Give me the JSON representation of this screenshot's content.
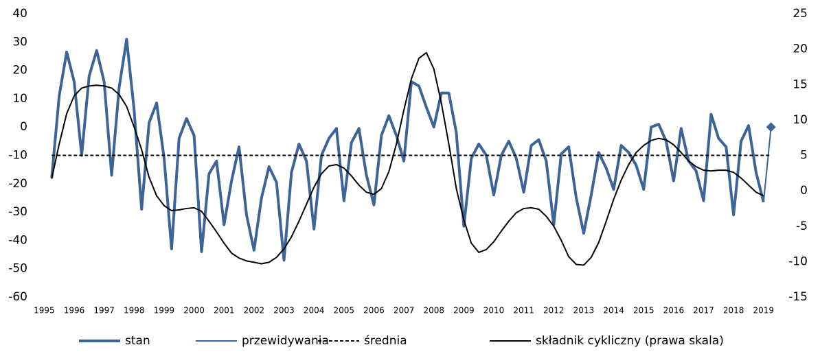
{
  "chart_data": {
    "type": "line",
    "xlim": [
      1994.9,
      2019.6
    ],
    "xticks": [
      1995,
      1996,
      1997,
      1998,
      1999,
      2000,
      2001,
      2002,
      2003,
      2004,
      2005,
      2006,
      2007,
      2008,
      2009,
      2010,
      2011,
      2012,
      2013,
      2014,
      2015,
      2016,
      2017,
      2018,
      2019
    ],
    "ylim": [
      -60,
      40
    ],
    "yticks": [
      -60,
      -50,
      -40,
      -30,
      -20,
      -10,
      0,
      10,
      20,
      30,
      40
    ],
    "y2lim": [
      -15,
      25
    ],
    "y2ticks": [
      -15,
      -10,
      -5,
      0,
      5,
      10,
      15,
      20,
      25
    ],
    "grid": false,
    "legend": "bottom",
    "series": [
      {
        "name": "stan",
        "color": "#3c6496",
        "style": "thick",
        "x": [
          1995.25,
          1995.5,
          1995.75,
          1996,
          1996.25,
          1996.5,
          1996.75,
          1997,
          1997.25,
          1997.5,
          1997.75,
          1998,
          1998.25,
          1998.5,
          1998.75,
          1999,
          1999.25,
          1999.5,
          1999.75,
          2000,
          2000.25,
          2000.5,
          2000.75,
          2001,
          2001.25,
          2001.5,
          2001.75,
          2002,
          2002.25,
          2002.5,
          2002.75,
          2003,
          2003.25,
          2003.5,
          2003.75,
          2004,
          2004.25,
          2004.5,
          2004.75,
          2005,
          2005.25,
          2005.5,
          2005.75,
          2006,
          2006.25,
          2006.5,
          2006.75,
          2007,
          2007.25,
          2007.5,
          2007.75,
          2008,
          2008.25,
          2008.5,
          2008.75,
          2009,
          2009.25,
          2009.5,
          2009.75,
          2010,
          2010.25,
          2010.5,
          2010.75,
          2011,
          2011.25,
          2011.5,
          2011.75,
          2012,
          2012.25,
          2012.5,
          2012.75,
          2013,
          2013.25,
          2013.5,
          2013.75,
          2014,
          2014.25,
          2014.5,
          2014.75,
          2015,
          2015.25,
          2015.5,
          2015.75,
          2016,
          2016.25,
          2016.5,
          2016.75,
          2017,
          2017.25,
          2017.5,
          2017.75,
          2018,
          2018.25,
          2018.5,
          2018.75,
          2019
        ],
        "values": [
          -18,
          11,
          26.5,
          16,
          -10,
          18,
          27,
          16,
          -17,
          14,
          31,
          6,
          -29,
          1.5,
          8.5,
          -11,
          -43,
          -4,
          3,
          -3,
          -44,
          -16.5,
          -12,
          -34.5,
          -19,
          -7,
          -31,
          -43.5,
          -25,
          -14,
          -19.5,
          -47,
          -16,
          -6,
          -12,
          -36,
          -10,
          -4,
          -0.5,
          -26,
          -5.5,
          -0.5,
          -17,
          -27.5,
          -3,
          4,
          -3,
          -12,
          16,
          14.5,
          7,
          0,
          12,
          12,
          -2,
          -35,
          -11,
          -6,
          -10,
          -24,
          -10,
          -5,
          -11,
          -23,
          -6.5,
          -4.5,
          -12,
          -34.5,
          -9.5,
          -7,
          -25,
          -37.5,
          -24,
          -9,
          -14.5,
          -22,
          -6.5,
          -9,
          -13.5,
          -22,
          0,
          1,
          -5,
          -19,
          -0.5,
          -12,
          -15.5,
          -26,
          4.5,
          -4,
          -7,
          -31,
          -5,
          0.5,
          -16,
          -26.5
        ]
      },
      {
        "name": "przewidywania",
        "color": "#3c6496",
        "style": "thin",
        "end_marker": "diamond",
        "x": [
          2019,
          2019.25
        ],
        "values": [
          -26.5,
          0
        ]
      },
      {
        "name": "średnia",
        "color": "#000000",
        "style": "dashed",
        "x": [
          1995.25,
          2019.25
        ],
        "values": [
          -10,
          -10
        ]
      },
      {
        "name": "składnik cykliczny (prawa skala)",
        "color": "#000000",
        "style": "solid",
        "axis": "y2",
        "x": [
          1995.25,
          1995.5,
          1995.75,
          1996,
          1996.25,
          1996.5,
          1996.75,
          1997,
          1997.25,
          1997.5,
          1997.75,
          1998,
          1998.25,
          1998.5,
          1998.75,
          1999,
          1999.25,
          1999.5,
          1999.75,
          2000,
          2000.25,
          2000.5,
          2000.75,
          2001,
          2001.25,
          2001.5,
          2001.75,
          2002,
          2002.25,
          2002.5,
          2002.75,
          2003,
          2003.25,
          2003.5,
          2003.75,
          2004,
          2004.25,
          2004.5,
          2004.75,
          2005,
          2005.25,
          2005.5,
          2005.75,
          2006,
          2006.25,
          2006.5,
          2006.75,
          2007,
          2007.25,
          2007.5,
          2007.75,
          2008,
          2008.25,
          2008.5,
          2008.75,
          2009,
          2009.25,
          2009.5,
          2009.75,
          2010,
          2010.25,
          2010.5,
          2010.75,
          2011,
          2011.25,
          2011.5,
          2011.75,
          2012,
          2012.25,
          2012.5,
          2012.75,
          2013,
          2013.25,
          2013.5,
          2013.75,
          2014,
          2014.25,
          2014.5,
          2014.75,
          2015,
          2015.25,
          2015.5,
          2015.75,
          2016,
          2016.25,
          2016.5,
          2016.75,
          2017,
          2017.25,
          2017.5,
          2017.75,
          2018,
          2018.25,
          2018.5,
          2018.75,
          2019
        ],
        "values": [
          1.7,
          6.6,
          10.9,
          13.4,
          14.5,
          14.8,
          14.9,
          14.8,
          14.5,
          13.6,
          11.9,
          9,
          5.8,
          1.9,
          -0.7,
          -2.1,
          -2.8,
          -2.7,
          -2.5,
          -2.4,
          -2.9,
          -4.3,
          -5.8,
          -7.4,
          -8.8,
          -9.5,
          -9.9,
          -10.1,
          -10.3,
          -10.1,
          -9.4,
          -8.2,
          -6.5,
          -4.3,
          -1.9,
          0.5,
          2.4,
          3.5,
          3.7,
          3.2,
          2.1,
          0.8,
          -0.2,
          -0.5,
          0.3,
          2.7,
          6.6,
          11.4,
          15.8,
          18.7,
          19.5,
          17.2,
          12.4,
          6.6,
          0.3,
          -4.1,
          -7.4,
          -8.7,
          -8.3,
          -7.2,
          -5.7,
          -4.3,
          -3.1,
          -2.5,
          -2.4,
          -2.6,
          -3.6,
          -5,
          -7,
          -9.3,
          -10.4,
          -10.5,
          -9.4,
          -7.3,
          -4.3,
          -1.2,
          1.5,
          3.7,
          5.4,
          6.4,
          7.1,
          7.4,
          7.2,
          6.5,
          5.4,
          4.2,
          3.4,
          2.9,
          2.8,
          2.9,
          2.9,
          2.6,
          1.8,
          0.8,
          -0.2,
          -0.7
        ]
      }
    ]
  }
}
